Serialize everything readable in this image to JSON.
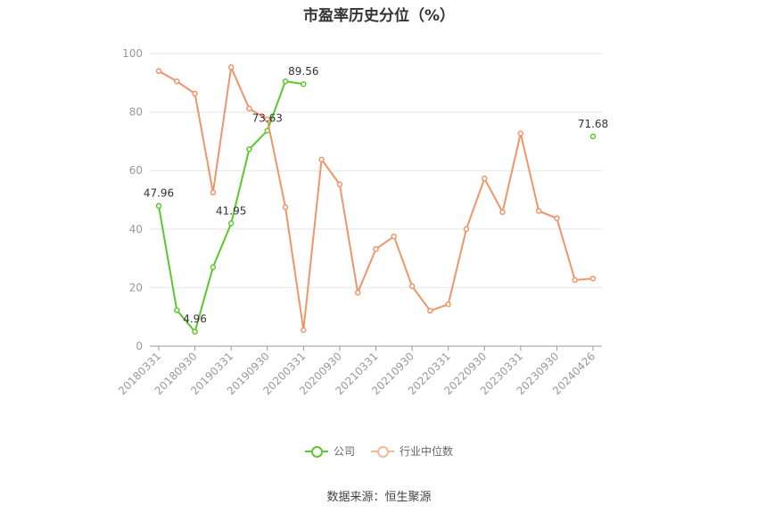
{
  "title": "市盈率历史分位（%）",
  "source": "数据来源：恒生聚源",
  "chart_data": {
    "type": "line",
    "ylim": [
      0,
      100
    ],
    "yticks": [
      0,
      20,
      40,
      60,
      80,
      100
    ],
    "grid": true,
    "legend_position": "bottom",
    "x": [
      "20180331",
      "20180630",
      "20180930",
      "20181231",
      "20190331",
      "20190630",
      "20190930",
      "20191231",
      "20200331",
      "20200630",
      "20200930",
      "20201231",
      "20210331",
      "20210630",
      "20210930",
      "20211231",
      "20220331",
      "20220630",
      "20220930",
      "20221231",
      "20230331",
      "20230630",
      "20230930",
      "20231231",
      "20240426"
    ],
    "x_tick_labels": [
      "20180331",
      "20180930",
      "20190331",
      "20190930",
      "20200331",
      "20200930",
      "20210331",
      "20210930",
      "20220331",
      "20220930",
      "20230331",
      "20230930",
      "20240426"
    ],
    "series": [
      {
        "name": "公司",
        "color": "#5cc72e",
        "values": [
          47.96,
          12.3,
          4.96,
          27.0,
          41.95,
          67.3,
          73.63,
          90.5,
          89.56,
          null,
          null,
          null,
          null,
          null,
          null,
          null,
          null,
          null,
          null,
          null,
          null,
          null,
          null,
          null,
          71.68
        ],
        "data_labels": [
          {
            "index": 0,
            "text": "47.96"
          },
          {
            "index": 2,
            "text": "4.96"
          },
          {
            "index": 4,
            "text": "41.95"
          },
          {
            "index": 6,
            "text": "73.63"
          },
          {
            "index": 8,
            "text": "89.56"
          },
          {
            "index": 24,
            "text": "71.68"
          }
        ]
      },
      {
        "name": "行业中位数",
        "color": "#f0956a",
        "values": [
          94.0,
          90.5,
          86.3,
          52.5,
          95.3,
          81.2,
          77.5,
          47.5,
          5.5,
          63.8,
          55.3,
          18.3,
          33.2,
          37.5,
          20.5,
          12.1,
          14.3,
          40.0,
          57.3,
          45.8,
          72.7,
          46.2,
          43.7,
          22.6,
          23.1
        ]
      }
    ]
  }
}
